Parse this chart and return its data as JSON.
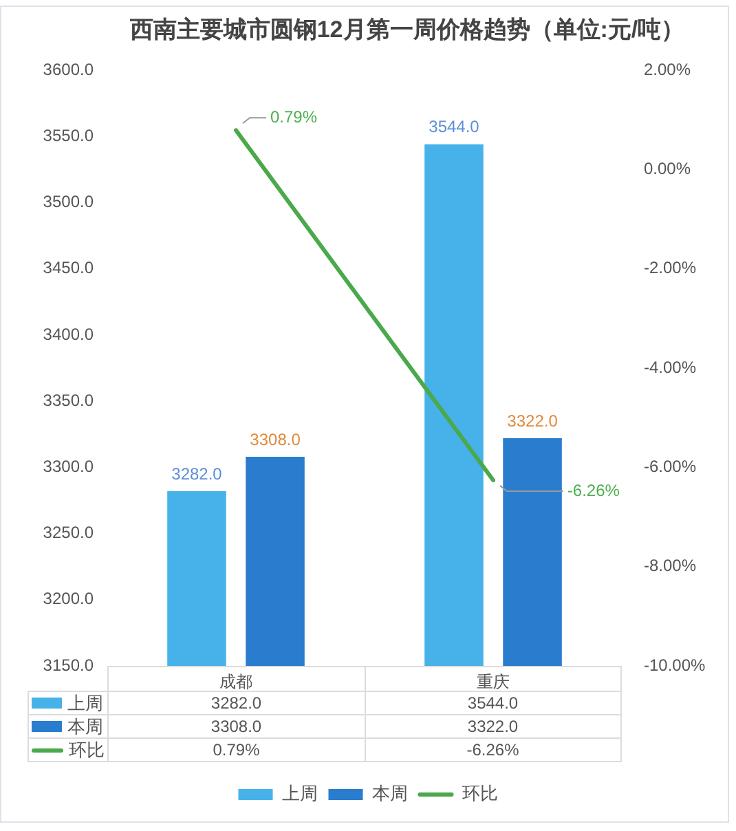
{
  "chart_data": {
    "type": "bar",
    "title": "西南主要城市圆钢12月第一周价格趋势（单位:元/吨）",
    "categories": [
      "成都",
      "重庆"
    ],
    "series": [
      {
        "name": "上周",
        "color": "#47b2ea",
        "values": [
          3282,
          3544
        ],
        "value_labels": [
          "3282.0",
          "3544.0"
        ]
      },
      {
        "name": "本周",
        "color": "#2a7ccf",
        "values": [
          3308,
          3322
        ],
        "value_labels": [
          "3308.0",
          "3322.0"
        ]
      },
      {
        "name": "环比",
        "type": "line",
        "axis": "y2",
        "color": "#4aa94a",
        "values": [
          0.79,
          -6.26
        ],
        "value_labels": [
          "0.79%",
          "-6.26%"
        ]
      }
    ],
    "ylim": [
      3150,
      3600
    ],
    "yticks": [
      {
        "value": 3150,
        "label": "3150.0"
      },
      {
        "value": 3200,
        "label": "3200.0"
      },
      {
        "value": 3250,
        "label": "3250.0"
      },
      {
        "value": 3300,
        "label": "3300.0"
      },
      {
        "value": 3350,
        "label": "3350.0"
      },
      {
        "value": 3400,
        "label": "3400.0"
      },
      {
        "value": 3450,
        "label": "3450.0"
      },
      {
        "value": 3500,
        "label": "3500.0"
      },
      {
        "value": 3550,
        "label": "3550.0"
      },
      {
        "value": 3600,
        "label": "3600.0"
      }
    ],
    "y2lim": [
      -10,
      2
    ],
    "y2ticks": [
      {
        "value": -10,
        "label": "-10.00%"
      },
      {
        "value": -8,
        "label": "-8.00%"
      },
      {
        "value": -6,
        "label": "-6.00%"
      },
      {
        "value": -4,
        "label": "-4.00%"
      },
      {
        "value": -2,
        "label": "-2.00%"
      },
      {
        "value": 0,
        "label": "0.00%"
      },
      {
        "value": 2,
        "label": "2.00%"
      }
    ],
    "legend": "bottom",
    "marker": "none"
  }
}
